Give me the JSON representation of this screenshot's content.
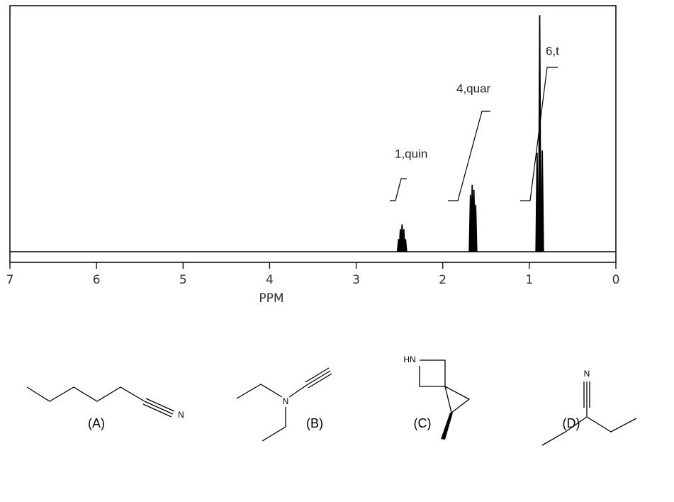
{
  "chart_data": {
    "type": "spectrum",
    "xlabel": "PPM",
    "xlim": [
      7,
      0
    ],
    "xticks": [
      7,
      6,
      5,
      4,
      3,
      2,
      1,
      0
    ],
    "ylim": [
      0,
      100
    ],
    "color": "#000000",
    "series": [
      {
        "x": [
          2.51,
          2.49,
          2.47,
          2.45,
          2.43
        ],
        "values": [
          5,
          9,
          11,
          9,
          5
        ]
      },
      {
        "x": [
          1.68,
          1.66,
          1.64,
          1.62
        ],
        "values": [
          23,
          27,
          25,
          19
        ]
      },
      {
        "x": [
          0.91,
          0.88,
          0.85
        ],
        "values": [
          40,
          96,
          41
        ]
      }
    ],
    "annotations": [
      "1,quin",
      "4,quar",
      "6,t"
    ]
  },
  "structures": [
    {
      "label": "(A)",
      "atoms": [
        "N"
      ]
    },
    {
      "label": "(B)",
      "atoms": [
        "N"
      ]
    },
    {
      "label": "(C)",
      "atoms": [
        "HN"
      ]
    },
    {
      "label": "(D)",
      "atoms": [
        "N"
      ]
    }
  ]
}
